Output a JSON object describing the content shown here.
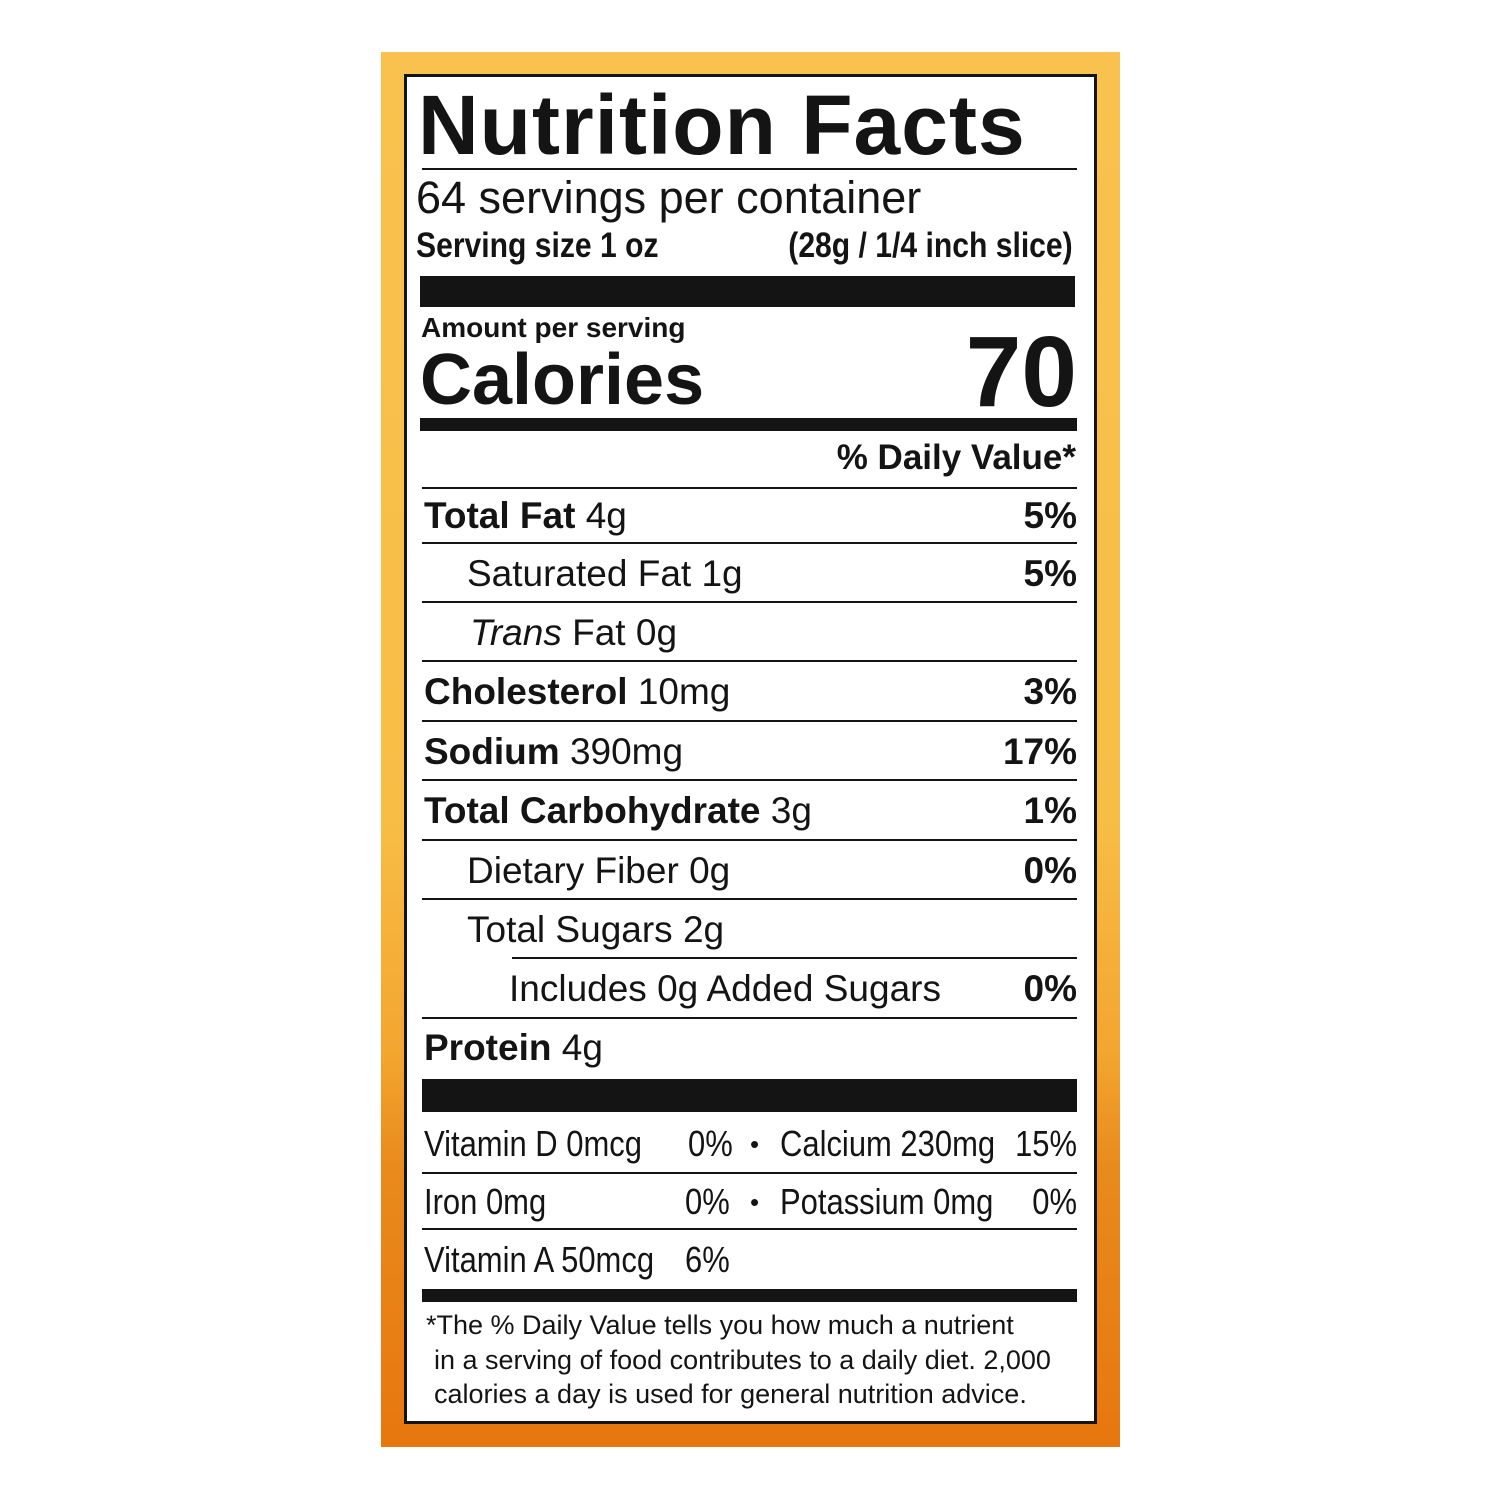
{
  "label": {
    "title": "Nutrition Facts",
    "servings_per_container": "64 servings per container",
    "serving_size_label": "Serving size 1 oz",
    "serving_size_value": "(28g / 1/4 inch slice)",
    "amount_per_serving": "Amount per serving",
    "calories_label": "Calories",
    "calories_value": "70",
    "daily_value_header": "% Daily Value*",
    "nutrients": [
      {
        "name": "Total Fat",
        "amount": "4g",
        "dv": "5%"
      },
      {
        "name": "Saturated Fat",
        "amount": "1g",
        "dv": "5%"
      },
      {
        "name": "Trans",
        "amount": "Fat 0g",
        "dv": ""
      },
      {
        "name": "Cholesterol",
        "amount": "10mg",
        "dv": "3%"
      },
      {
        "name": "Sodium",
        "amount": "390mg",
        "dv": "17%"
      },
      {
        "name": "Total Carbohydrate",
        "amount": "3g",
        "dv": "1%"
      },
      {
        "name": "Dietary Fiber",
        "amount": "0g",
        "dv": "0%"
      },
      {
        "name": "Total Sugars",
        "amount": "2g",
        "dv": ""
      },
      {
        "name": "Includes 0g Added Sugars",
        "amount": "",
        "dv": "0%"
      },
      {
        "name": "Protein",
        "amount": "4g",
        "dv": ""
      }
    ],
    "vitamins": [
      {
        "name": "Vitamin D 0mcg",
        "dv": "0%",
        "name2": "Calcium 230mg",
        "dv2": "15%"
      },
      {
        "name": "Iron 0mg",
        "dv": "0%",
        "name2": "Potassium 0mg",
        "dv2": "0%"
      },
      {
        "name": "Vitamin A 50mcg",
        "dv": "6%"
      }
    ],
    "bullet": "•",
    "footnote": [
      "*The % Daily Value tells you how much a nutrient",
      "in a serving of food contributes to a daily diet. 2,000",
      "calories a day is used for general nutrition advice."
    ]
  },
  "colors": {
    "frame_top": "#f9c24e",
    "frame_bottom": "#e7770f",
    "ink": "#141414"
  }
}
